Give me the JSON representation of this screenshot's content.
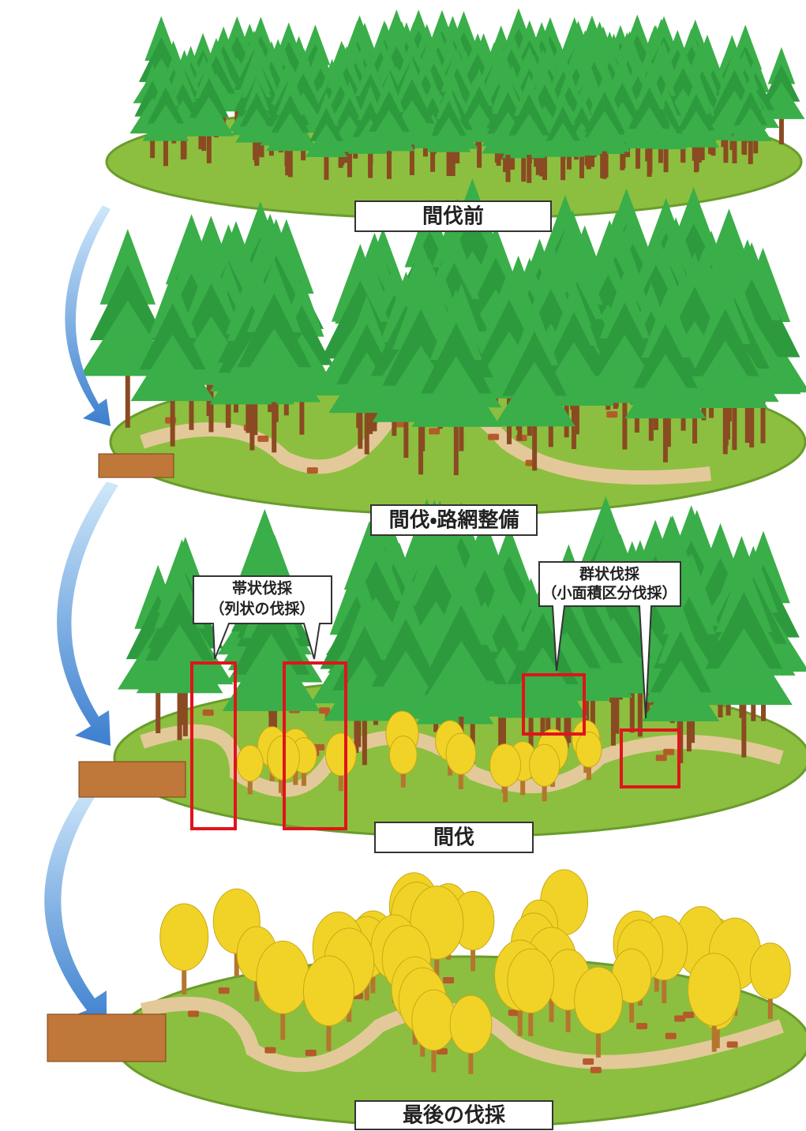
{
  "panels": [
    {
      "label": "間伐前"
    },
    {
      "label": "間伐・路網整備"
    },
    {
      "label": "間伐",
      "callouts": [
        {
          "title": "帯状伐採",
          "subtitle": "（列状の伐採）"
        },
        {
          "title": "群状伐採",
          "subtitle": "（小面積区分伐採）"
        }
      ]
    },
    {
      "label": "最後の伐採"
    }
  ]
}
